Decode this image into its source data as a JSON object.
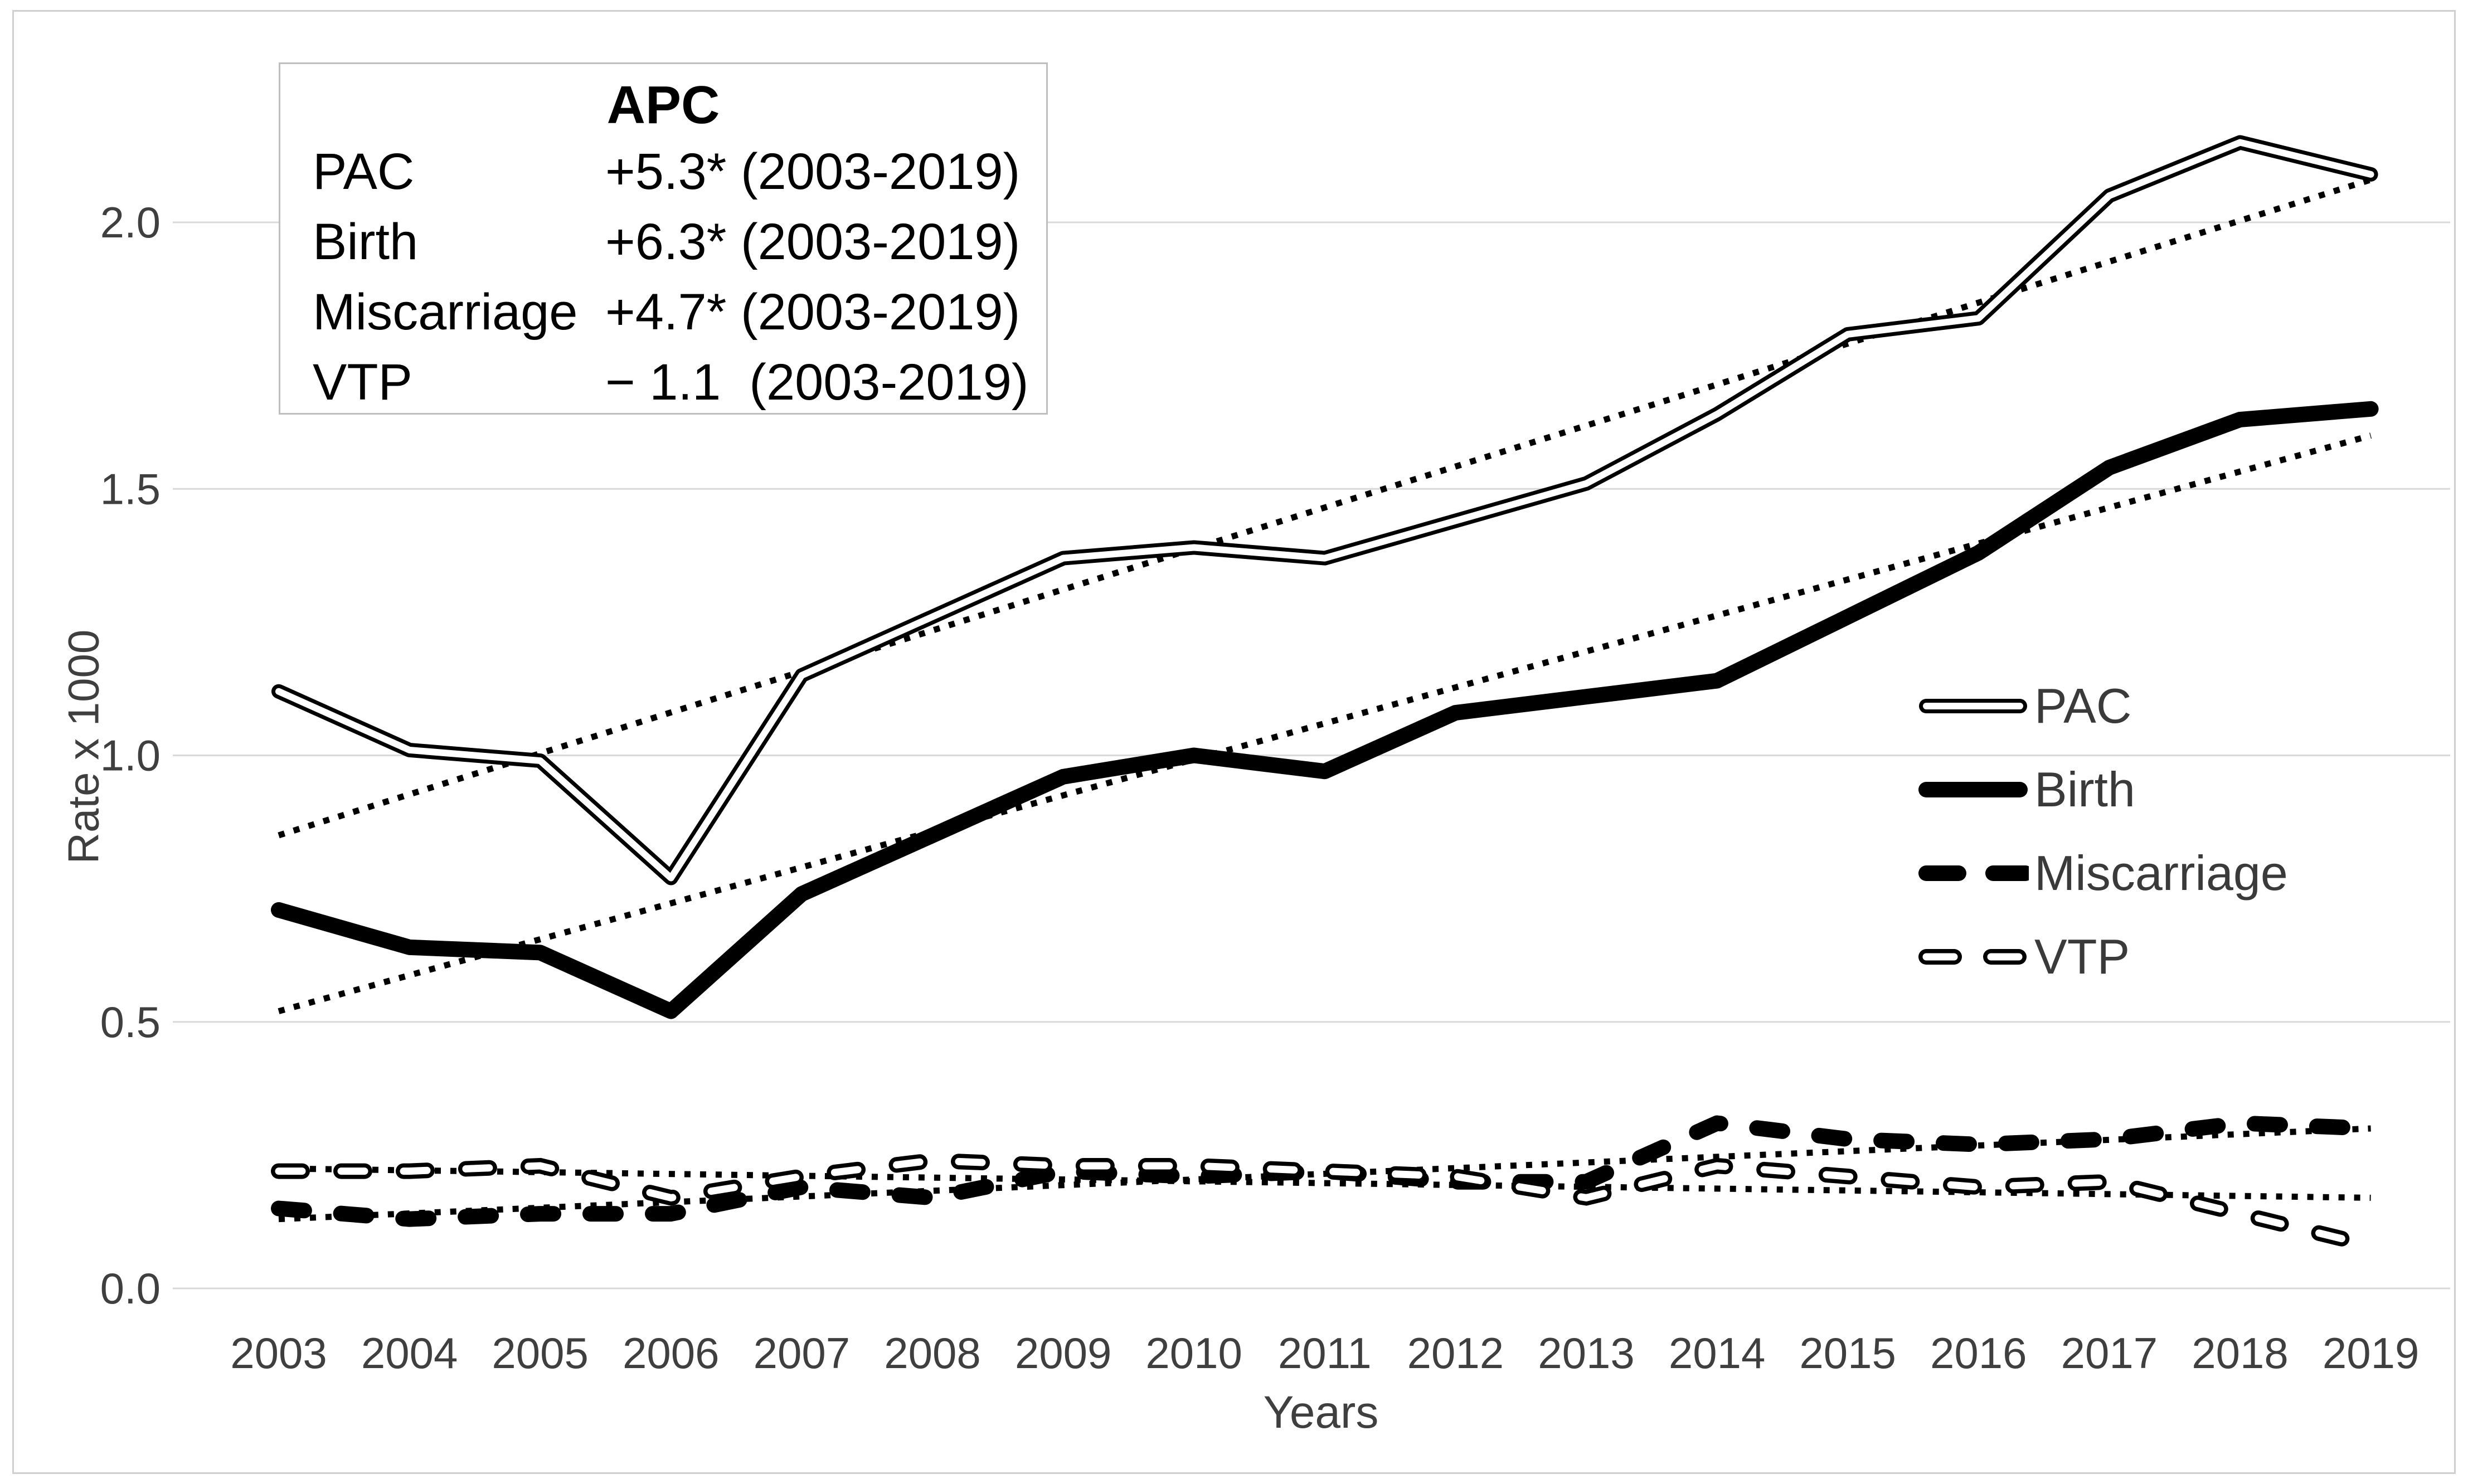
{
  "figure": {
    "y_axis_label": "Rate x 1000",
    "x_axis_label": "Years"
  },
  "apc_box": {
    "title": "APC",
    "rows": [
      {
        "label": "PAC",
        "value": "+5.3* (2003-2019)"
      },
      {
        "label": "Birth",
        "value": "+6.3* (2003-2019)"
      },
      {
        "label": "Miscarriage",
        "value": "+4.7* (2003-2019)"
      },
      {
        "label": "VTP",
        "value": "− 1.1  (2003-2019)"
      }
    ]
  },
  "legend": {
    "items": [
      {
        "label": "PAC",
        "style": "double-line"
      },
      {
        "label": "Birth",
        "style": "solid-thick"
      },
      {
        "label": "Miscarriage",
        "style": "dashed-thick"
      },
      {
        "label": "VTP",
        "style": "dashed-outline"
      }
    ]
  },
  "chart_data": {
    "type": "line",
    "title": "",
    "xlabel": "Years",
    "ylabel": "Rate x 1000",
    "x": [
      2003,
      2004,
      2005,
      2006,
      2007,
      2008,
      2009,
      2010,
      2011,
      2012,
      2013,
      2014,
      2015,
      2016,
      2017,
      2018,
      2019
    ],
    "ylim": [
      0,
      2.3
    ],
    "grid": true,
    "legend_position": "middle-right",
    "yticks": [
      {
        "value": 0.0,
        "label": "0.0"
      },
      {
        "value": 0.5,
        "label": "0.5"
      },
      {
        "value": 1.0,
        "label": "1.0"
      },
      {
        "value": 1.5,
        "label": "1.5"
      },
      {
        "value": 2.0,
        "label": "2.0"
      }
    ],
    "series": [
      {
        "name": "PAC",
        "style": "double-line",
        "values": [
          1.12,
          1.01,
          0.99,
          0.77,
          1.15,
          1.26,
          1.37,
          1.39,
          1.37,
          1.44,
          1.51,
          1.64,
          1.79,
          1.82,
          2.05,
          2.15,
          2.09
        ]
      },
      {
        "name": "Birth",
        "style": "solid-thick",
        "values": [
          0.71,
          0.64,
          0.63,
          0.52,
          0.74,
          0.85,
          0.96,
          1.0,
          0.97,
          1.08,
          1.11,
          1.14,
          1.26,
          1.38,
          1.54,
          1.63,
          1.65
        ]
      },
      {
        "name": "Miscarriage",
        "style": "dashed-thick",
        "values": [
          0.15,
          0.13,
          0.14,
          0.14,
          0.19,
          0.17,
          0.22,
          0.21,
          0.22,
          0.2,
          0.2,
          0.31,
          0.28,
          0.27,
          0.28,
          0.31,
          0.3
        ]
      },
      {
        "name": "VTP",
        "style": "dashed-outline",
        "values": [
          0.22,
          0.22,
          0.23,
          0.17,
          0.21,
          0.24,
          0.23,
          0.23,
          0.22,
          0.21,
          0.17,
          0.23,
          0.21,
          0.19,
          0.2,
          0.14,
          0.08
        ]
      }
    ],
    "trendlines": [
      {
        "series": "PAC",
        "style": "dotted",
        "start": 0.85,
        "end": 2.08
      },
      {
        "series": "Birth",
        "style": "dotted",
        "start": 0.52,
        "end": 1.6
      },
      {
        "series": "Miscarriage",
        "style": "dotted",
        "start": 0.13,
        "end": 0.3
      },
      {
        "series": "VTP",
        "style": "dotted",
        "start": 0.225,
        "end": 0.17
      }
    ]
  }
}
